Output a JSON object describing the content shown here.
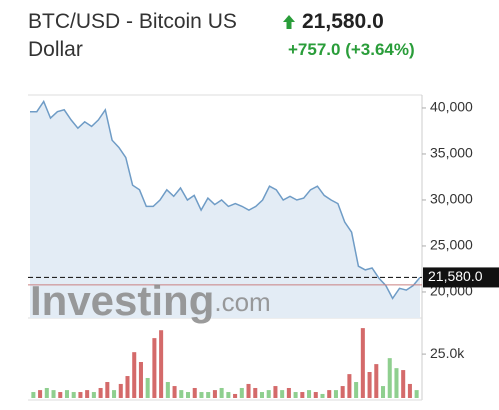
{
  "header": {
    "title": "BTC/USD - Bitcoin US Dollar",
    "price": "21,580.0",
    "change": "+757.0 (+3.64%)"
  },
  "watermark": [
    "Investing",
    ".com"
  ],
  "chart_data": [
    {
      "type": "area",
      "color": "#6f9cc6",
      "fill": "#e3ecf5",
      "values": [
        39600,
        39600,
        40700,
        38900,
        39600,
        39800,
        38700,
        37800,
        38500,
        38000,
        38700,
        39800,
        36500,
        35700,
        34600,
        31600,
        31100,
        29300,
        29300,
        30000,
        31100,
        30400,
        31300,
        30000,
        30500,
        28900,
        30200,
        29500,
        30000,
        29300,
        29600,
        29300,
        28900,
        29300,
        30000,
        31500,
        31100,
        30000,
        30400,
        30000,
        30200,
        31100,
        31500,
        30500,
        30000,
        29600,
        27600,
        26500,
        22800,
        22400,
        22600,
        21500,
        20700,
        19300,
        20400,
        20200,
        20700,
        21580
      ],
      "ylim": [
        17170,
        41410
      ],
      "yticks": [
        {
          "value": 20000,
          "label": "20,000"
        },
        {
          "value": 25000,
          "label": "25,000"
        },
        {
          "value": 30000,
          "label": "30,000"
        },
        {
          "value": 35000,
          "label": "35,000"
        },
        {
          "value": 40000,
          "label": "40,000"
        }
      ],
      "last_price": {
        "value": 21580,
        "label": "21,580.0"
      },
      "reference_line": 20770
    },
    {
      "type": "bar",
      "values": [
        3400,
        4500,
        5700,
        4500,
        3400,
        4500,
        3400,
        3400,
        4500,
        3400,
        5700,
        9100,
        4500,
        8000,
        12500,
        26100,
        20500,
        11400,
        34100,
        38600,
        9100,
        6800,
        4500,
        3400,
        5700,
        3400,
        3400,
        4500,
        5700,
        3400,
        2300,
        5700,
        8000,
        5700,
        3400,
        4500,
        6800,
        4500,
        5700,
        3400,
        3400,
        4500,
        3400,
        2300,
        4500,
        4500,
        6800,
        13600,
        9100,
        39800,
        14800,
        19300,
        6800,
        22700,
        17000,
        15900,
        8000,
        4500
      ],
      "colors": [
        "#8fcf8f",
        "#d46a6a",
        "#8fcf8f",
        "#8fcf8f",
        "#d46a6a",
        "#8fcf8f",
        "#8fcf8f",
        "#d46a6a",
        "#d46a6a",
        "#8fcf8f",
        "#d46a6a",
        "#d46a6a",
        "#8fcf8f",
        "#d46a6a",
        "#d46a6a",
        "#d46a6a",
        "#d46a6a",
        "#8fcf8f",
        "#d46a6a",
        "#d46a6a",
        "#8fcf8f",
        "#d46a6a",
        "#8fcf8f",
        "#8fcf8f",
        "#d46a6a",
        "#8fcf8f",
        "#8fcf8f",
        "#d46a6a",
        "#8fcf8f",
        "#8fcf8f",
        "#d46a6a",
        "#8fcf8f",
        "#d46a6a",
        "#d46a6a",
        "#8fcf8f",
        "#8fcf8f",
        "#d46a6a",
        "#8fcf8f",
        "#d46a6a",
        "#8fcf8f",
        "#d46a6a",
        "#8fcf8f",
        "#d46a6a",
        "#8fcf8f",
        "#d46a6a",
        "#8fcf8f",
        "#d46a6a",
        "#d46a6a",
        "#8fcf8f",
        "#d46a6a",
        "#d46a6a",
        "#d46a6a",
        "#8fcf8f",
        "#8fcf8f",
        "#8fcf8f",
        "#d46a6a",
        "#d46a6a",
        "#8fcf8f"
      ],
      "ylim": [
        0,
        41000
      ],
      "yticks": [
        {
          "value": 25000,
          "label": "25.0k"
        }
      ]
    }
  ]
}
